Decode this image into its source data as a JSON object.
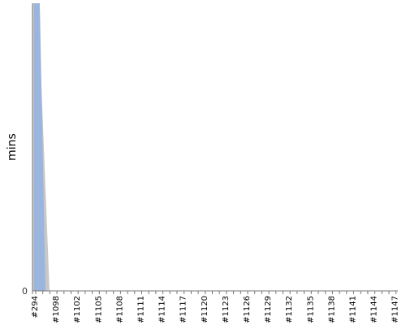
{
  "chart_data": {
    "type": "area",
    "title": "",
    "xlabel": "",
    "ylabel": "mins",
    "x": [
      "#294",
      "#1098",
      "#1102",
      "#1105",
      "#1108",
      "#1111",
      "#1114",
      "#1117",
      "#1120",
      "#1123",
      "#1126",
      "#1129",
      "#1132",
      "#1135",
      "#1138",
      "#1141",
      "#1144",
      "#1147"
    ],
    "x_ticks_shown": [
      "#294",
      "#1098",
      "#1102",
      "#1105",
      "#1108",
      "#1111",
      "#1114",
      "#1117",
      "#1120",
      "#1123",
      "#1126",
      "#1129",
      "#1132",
      "#1135",
      "#1138",
      "#1141",
      "#1144",
      "#1147"
    ],
    "y_ticks_shown": [
      "0"
    ],
    "stacked": true,
    "series": [
      {
        "color": "#9ab5de",
        "values": [
          null,
          null,
          null,
          null,
          null,
          null,
          null,
          null,
          null,
          null,
          null,
          null,
          null,
          null,
          null,
          null,
          null,
          null
        ]
      },
      {
        "color": "#c8c8c8",
        "values": [
          null,
          null,
          null,
          null,
          null,
          null,
          null,
          null,
          null,
          null,
          null,
          null,
          null,
          null,
          null,
          null,
          null,
          null
        ]
      }
    ],
    "grid": false,
    "legend": "none"
  }
}
